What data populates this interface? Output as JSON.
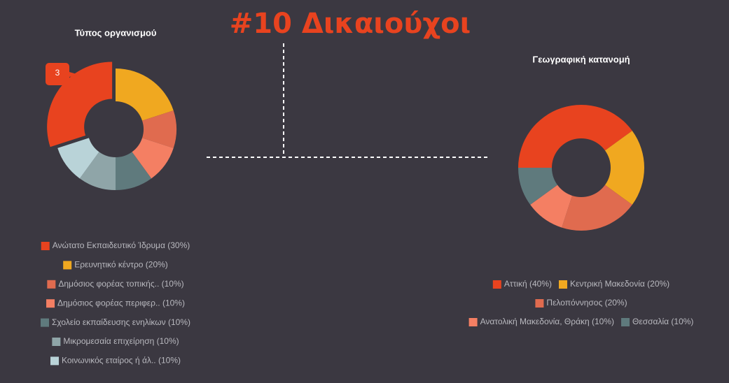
{
  "title": "#10 Δικαιούχοι",
  "chart_data": [
    {
      "type": "donut",
      "title": "Τύπος οργανισμού",
      "categories": [
        "Ανώτατο Εκπαιδευτικό Ίδρυμα (30%)",
        "Ερευνητικό κέντρο (20%)",
        "Δημόσιος φορέας τοπικής.. (10%)",
        "Δημόσιος φορέας περιφερ.. (10%)",
        "Σχολείο εκπαίδευσης ενηλίκων (10%)",
        "Μικρομεσαία επιχείρηση (10%)",
        "Κοινωνικός εταίρος ή άλ.. (10%)"
      ],
      "values": [
        30,
        20,
        10,
        10,
        10,
        10,
        10
      ],
      "colors": [
        "#e8431f",
        "#f0a820",
        "#e06b4f",
        "#f47f63",
        "#5f7a7d",
        "#8fa5a8",
        "#b9d3d8"
      ],
      "tooltip": "3"
    },
    {
      "type": "donut",
      "title": "Γεωγραφική κατανομή",
      "categories": [
        "Αττική (40%)",
        "Κεντρική Μακεδονία (20%)",
        "Πελοπόννησος (20%)",
        "Ανατολική Μακεδονία, Θράκη (10%)",
        "Θεσσαλία (10%)"
      ],
      "values": [
        40,
        20,
        20,
        10,
        10
      ],
      "colors": [
        "#e8431f",
        "#f0a820",
        "#e06b4f",
        "#f47f63",
        "#5f7a7d"
      ]
    }
  ]
}
